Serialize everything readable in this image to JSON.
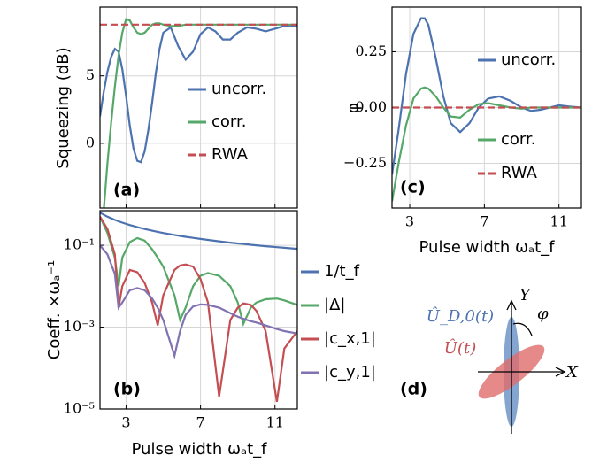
{
  "chart_data": [
    {
      "type": "line",
      "ylabel": "Squeezing (dB)",
      "panel_label": "(a)",
      "legend": "lower right",
      "grid": true,
      "show_xticklabels": false,
      "xlim": [
        1.6,
        12.2
      ],
      "xticks": [
        3,
        7,
        11
      ],
      "ylim": [
        -4.8,
        10.1
      ],
      "yticks": [
        0,
        5
      ],
      "x": [
        1.6,
        1.8,
        2.0,
        2.2,
        2.4,
        2.6,
        2.8,
        3.0,
        3.2,
        3.4,
        3.6,
        3.8,
        4.0,
        4.2,
        4.4,
        4.6,
        4.8,
        5.0,
        5.4,
        5.8,
        6.2,
        6.6,
        7.0,
        7.4,
        7.8,
        8.2,
        8.6,
        9.0,
        9.5,
        10,
        10.5,
        11,
        11.5,
        12.2
      ],
      "series": [
        {
          "name": "uncorr.",
          "color": "#4c72b0",
          "values": [
            2.0,
            3.8,
            5.3,
            6.4,
            7.0,
            6.8,
            5.5,
            3.5,
            1.3,
            -0.4,
            -1.3,
            -1.4,
            -0.6,
            1.0,
            3.0,
            5.2,
            7.0,
            8.2,
            8.6,
            7.2,
            6.2,
            6.8,
            8.1,
            8.6,
            8.3,
            7.7,
            7.7,
            8.2,
            8.6,
            8.5,
            8.3,
            8.5,
            8.7,
            8.7
          ]
        },
        {
          "name": "corr.",
          "color": "#55a868",
          "values": [
            -7,
            -5,
            -1.5,
            1.5,
            4.2,
            6.5,
            8.2,
            9.2,
            9.1,
            8.6,
            8.2,
            8.1,
            8.2,
            8.5,
            8.8,
            8.9,
            8.9,
            8.8,
            8.7,
            8.7,
            8.8,
            8.8,
            8.8,
            8.8,
            8.8,
            8.8,
            8.8,
            8.8,
            8.8,
            8.8,
            8.8,
            8.8,
            8.8,
            8.8
          ]
        },
        {
          "name": "RWA",
          "color": "#c44e52",
          "dashed": true,
          "values": [
            8.8,
            8.8,
            8.8,
            8.8,
            8.8,
            8.8,
            8.8,
            8.8,
            8.8,
            8.8,
            8.8,
            8.8,
            8.8,
            8.8,
            8.8,
            8.8,
            8.8,
            8.8,
            8.8,
            8.8,
            8.8,
            8.8,
            8.8,
            8.8,
            8.8,
            8.8,
            8.8,
            8.8,
            8.8,
            8.8,
            8.8,
            8.8,
            8.8,
            8.8
          ]
        }
      ]
    },
    {
      "type": "line",
      "ylabel": "Coeff. ×ωₐ⁻¹",
      "xlabel": "Pulse width ωₐt_f",
      "panel_label": "(b)",
      "legend": "outside right",
      "grid": true,
      "yscale": "log",
      "xlim": [
        1.6,
        12.2
      ],
      "xticks": [
        3,
        7,
        11
      ],
      "ylim": [
        1e-05,
        0.7
      ],
      "yticks": [
        {
          "value": 0.1,
          "label": "10⁻¹"
        },
        {
          "value": 0.001,
          "label": "10⁻³"
        },
        {
          "value": 1e-05,
          "label": "10⁻⁵"
        }
      ],
      "x": [
        1.6,
        2.0,
        2.4,
        2.6,
        2.8,
        3.2,
        3.6,
        4.0,
        4.4,
        4.7,
        5.0,
        5.6,
        5.9,
        6.2,
        6.6,
        7.0,
        7.4,
        8.0,
        8.6,
        9.0,
        9.3,
        9.7,
        10.0,
        10.5,
        11.1,
        11.5,
        12.2
      ],
      "series": [
        {
          "name": "1/t_f",
          "color": "#4c72b0",
          "values": [
            0.625,
            0.5,
            0.417,
            0.385,
            0.357,
            0.313,
            0.278,
            0.25,
            0.227,
            0.213,
            0.2,
            0.179,
            0.169,
            0.161,
            0.152,
            0.143,
            0.135,
            0.125,
            0.116,
            0.111,
            0.108,
            0.103,
            0.1,
            0.0952,
            0.0901,
            0.087,
            0.082
          ]
        },
        {
          "name": "|Δ|",
          "color": "#55a868",
          "values": [
            0.5,
            0.2,
            0.05,
            0.01,
            0.05,
            0.12,
            0.15,
            0.13,
            0.08,
            0.05,
            0.03,
            0.006,
            0.0015,
            0.003,
            0.01,
            0.018,
            0.021,
            0.018,
            0.01,
            0.004,
            0.0012,
            0.003,
            0.004,
            0.0048,
            0.005,
            0.0045,
            0.0035
          ]
        },
        {
          "name": "|c_x,1|",
          "color": "#c44e52",
          "values": [
            0.5,
            0.25,
            0.06,
            0.003,
            0.01,
            0.025,
            0.022,
            0.012,
            0.004,
            0.0011,
            0.006,
            0.025,
            0.032,
            0.034,
            0.03,
            0.015,
            0.004,
            2e-05,
            0.0015,
            0.003,
            0.0038,
            0.0035,
            0.0025,
            0.0008,
            1.5e-05,
            0.0003,
            0.0008
          ]
        },
        {
          "name": "|c_y,1|",
          "color": "#8172b2",
          "values": [
            0.1,
            0.06,
            0.02,
            0.003,
            0.004,
            0.008,
            0.009,
            0.008,
            0.005,
            0.003,
            0.0015,
            0.0002,
            0.0008,
            0.002,
            0.0032,
            0.0036,
            0.0035,
            0.003,
            0.0022,
            0.0018,
            0.0016,
            0.0014,
            0.0013,
            0.0011,
            0.0009,
            0.0008,
            0.0007
          ]
        }
      ]
    },
    {
      "type": "line",
      "ylabel": "φ",
      "xlabel": "Pulse width ωₐt_f",
      "panel_label": "(c)",
      "legend": "right",
      "grid": true,
      "xlim": [
        2.05,
        12.2
      ],
      "xticks": [
        3,
        7,
        11
      ],
      "ylim": [
        -0.45,
        0.45
      ],
      "yticks": [
        {
          "value": -0.25,
          "label": "−0.25"
        },
        {
          "value": 0,
          "label": "0.00"
        },
        0.25
      ],
      "x": [
        2.05,
        2.4,
        2.8,
        3.2,
        3.6,
        3.8,
        4.0,
        4.4,
        4.8,
        5.2,
        5.7,
        6.2,
        6.7,
        7.2,
        7.8,
        8.4,
        9.0,
        9.5,
        10.0,
        10.5,
        11.0,
        11.5,
        12.2
      ],
      "series": [
        {
          "name": "uncorr.",
          "color": "#4c72b0",
          "values": [
            -0.3,
            -0.1,
            0.15,
            0.33,
            0.4,
            0.4,
            0.37,
            0.22,
            0.05,
            -0.07,
            -0.11,
            -0.07,
            0.0,
            0.04,
            0.05,
            0.03,
            0.0,
            -0.015,
            -0.01,
            0.0,
            0.01,
            0.005,
            0.0
          ]
        },
        {
          "name": "corr.",
          "color": "#55a868",
          "values": [
            -0.42,
            -0.25,
            -0.08,
            0.04,
            0.085,
            0.09,
            0.085,
            0.05,
            0.0,
            -0.04,
            -0.045,
            -0.01,
            0.015,
            0.02,
            0.01,
            0.0,
            -0.005,
            0,
            0,
            0,
            0,
            0,
            0
          ]
        },
        {
          "name": "RWA",
          "color": "#c44e52",
          "dashed": true,
          "values": [
            0,
            0,
            0,
            0,
            0,
            0,
            0,
            0,
            0,
            0,
            0,
            0,
            0,
            0,
            0,
            0,
            0,
            0,
            0,
            0,
            0,
            0,
            0
          ]
        }
      ]
    }
  ],
  "diagram": {
    "panel_label": "(d)",
    "label_blue": "Û_D,0(t)",
    "label_red": "Û(t)",
    "x_axis": "X",
    "y_axis": "Y",
    "angle": "φ"
  }
}
